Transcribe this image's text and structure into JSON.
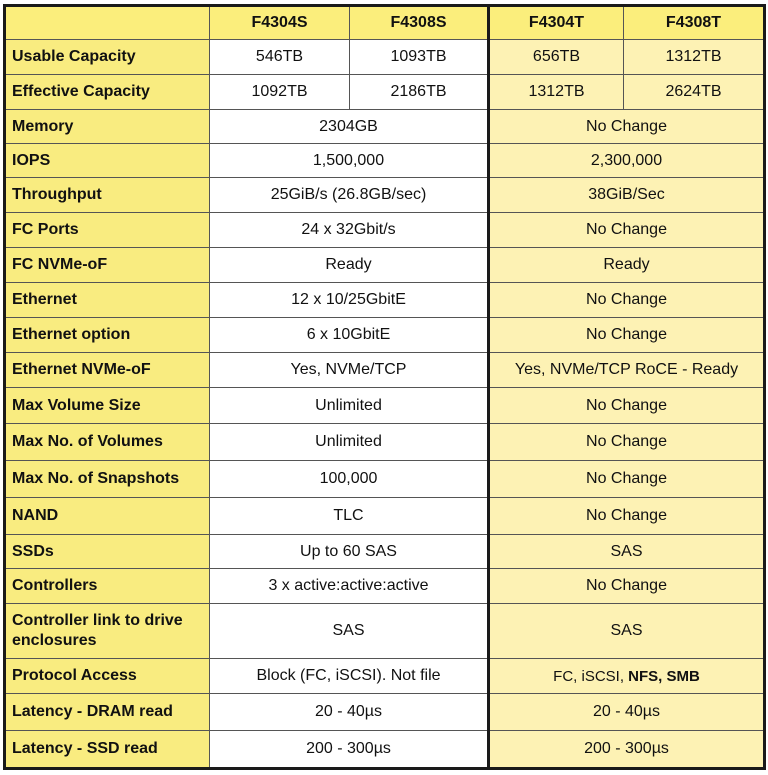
{
  "header": {
    "corner": "",
    "columns": [
      "F4304S",
      "F4308S",
      "F4304T",
      "F4308T"
    ]
  },
  "colors": {
    "label_bg": "#f9ec80",
    "header_bg": "#fbee7c",
    "s_bg": "#ffffff",
    "t_bg": "#fdf2b4",
    "border": "#1a1a1a"
  },
  "rows": [
    {
      "label": "Usable Capacity",
      "s": [
        "546TB",
        "1093TB"
      ],
      "t": [
        "656TB",
        "1312TB"
      ]
    },
    {
      "label": "Effective Capacity",
      "s": [
        "1092TB",
        "2186TB"
      ],
      "t": [
        "1312TB",
        "2624TB"
      ]
    },
    {
      "label": "Memory",
      "s": [
        "2304GB"
      ],
      "t": [
        "No Change"
      ]
    },
    {
      "label": "IOPS",
      "s": [
        "1,500,000"
      ],
      "t": [
        "2,300,000"
      ]
    },
    {
      "label": "Throughput",
      "s": [
        "25GiB/s (26.8GB/sec)"
      ],
      "t": [
        "38GiB/Sec"
      ]
    },
    {
      "label": "FC Ports",
      "s": [
        "24 x 32Gbit/s"
      ],
      "t": [
        "No Change"
      ]
    },
    {
      "label": "FC NVMe-oF",
      "s": [
        "Ready"
      ],
      "t": [
        "Ready"
      ]
    },
    {
      "label": "Ethernet",
      "s": [
        "12 x 10/25GbitE"
      ],
      "t": [
        "No Change"
      ]
    },
    {
      "label": "Ethernet option",
      "s": [
        "6 x 10GbitE"
      ],
      "t": [
        "No Change"
      ]
    },
    {
      "label": "Ethernet NVMe-oF",
      "s": [
        "Yes, NVMe/TCP"
      ],
      "t": [
        "Yes, NVMe/TCP RoCE - Ready"
      ]
    },
    {
      "label": "Max Volume Size",
      "s": [
        "Unlimited"
      ],
      "t": [
        "No Change"
      ]
    },
    {
      "label": "Max No. of Volumes",
      "s": [
        "Unlimited"
      ],
      "t": [
        "No Change"
      ]
    },
    {
      "label": "Max No. of Snapshots",
      "s": [
        "100,000"
      ],
      "t": [
        "No Change"
      ]
    },
    {
      "label": "NAND",
      "s": [
        "TLC"
      ],
      "t": [
        "No Change"
      ]
    },
    {
      "label": "SSDs",
      "s": [
        "Up to 60 SAS"
      ],
      "t": [
        "SAS"
      ]
    },
    {
      "label": "Controllers",
      "s": [
        "3 x active:active:active"
      ],
      "t": [
        "No Change"
      ]
    },
    {
      "label": "Controller link to drive enclosures",
      "s": [
        "SAS"
      ],
      "t": [
        "SAS"
      ]
    },
    {
      "label": "Protocol Access",
      "s": [
        "Block (FC, iSCSI). Not file"
      ],
      "t": [
        "FC, iSCSI, "
      ],
      "t_bold": "NFS, SMB"
    },
    {
      "label": "Latency - DRAM read",
      "s": [
        "20 - 40µs"
      ],
      "t": [
        "20 - 40µs"
      ]
    },
    {
      "label": "Latency - SSD read",
      "s": [
        "200 - 300µs"
      ],
      "t": [
        "200 - 300µs"
      ]
    }
  ]
}
